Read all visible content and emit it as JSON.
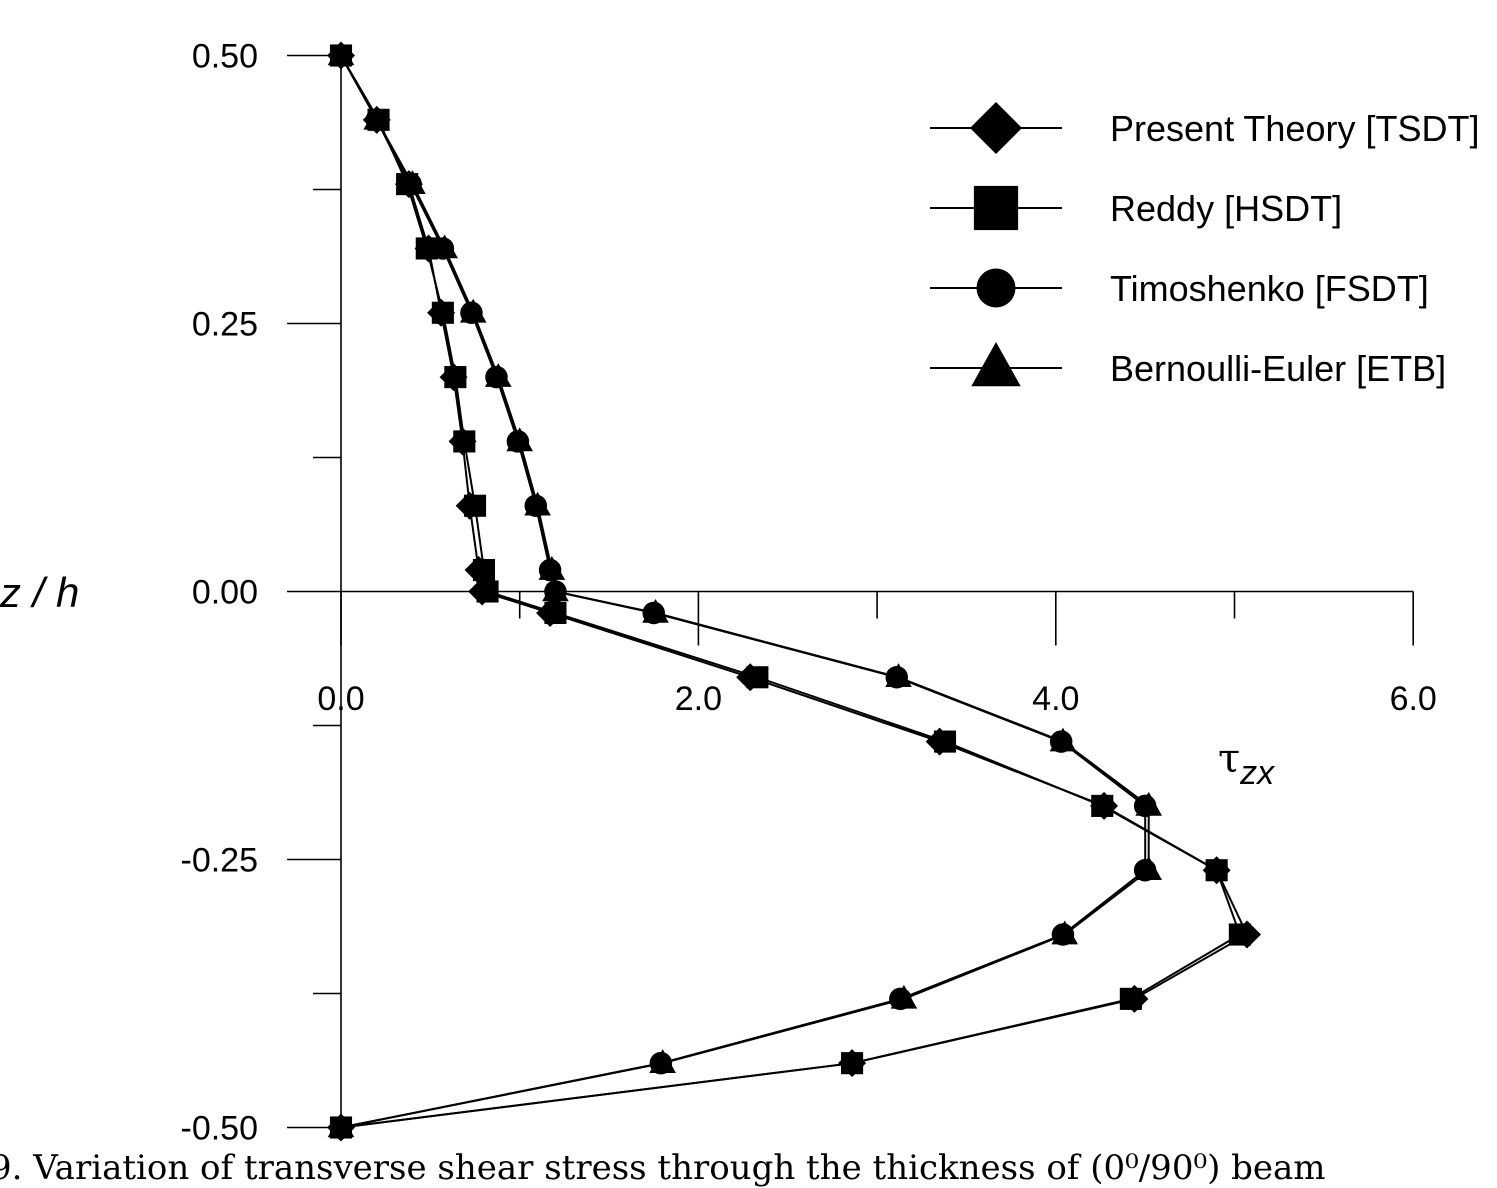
{
  "chart_data": {
    "type": "line",
    "xlabel": "τ zx",
    "ylabel": "z / h",
    "xlim": [
      0,
      6.0
    ],
    "ylim": [
      -0.5,
      0.5
    ],
    "x_ticks": [
      "0.0",
      "2.0",
      "4.0",
      "6.0"
    ],
    "y_ticks": [
      "0.50",
      "0.25",
      "0.00",
      "-0.25",
      "-0.50"
    ],
    "legend_position": "top-right",
    "series": [
      {
        "name": "Present Theory [TSDT]",
        "marker": "diamond",
        "points": [
          [
            0.0,
            0.5
          ],
          [
            0.2,
            0.44
          ],
          [
            0.38,
            0.38
          ],
          [
            0.49,
            0.32
          ],
          [
            0.56,
            0.26
          ],
          [
            0.63,
            0.2
          ],
          [
            0.68,
            0.14
          ],
          [
            0.72,
            0.08
          ],
          [
            0.77,
            0.02
          ],
          [
            0.79,
            0.0
          ],
          [
            1.17,
            -0.02
          ],
          [
            2.29,
            -0.08
          ],
          [
            3.35,
            -0.14
          ],
          [
            4.27,
            -0.2
          ],
          [
            4.9,
            -0.26
          ],
          [
            5.07,
            -0.32
          ],
          [
            4.44,
            -0.38
          ],
          [
            2.86,
            -0.44
          ],
          [
            0.0,
            -0.5
          ]
        ]
      },
      {
        "name": "Reddy [HSDT]",
        "marker": "square",
        "points": [
          [
            0.0,
            0.5
          ],
          [
            0.21,
            0.44
          ],
          [
            0.37,
            0.38
          ],
          [
            0.48,
            0.32
          ],
          [
            0.57,
            0.26
          ],
          [
            0.64,
            0.2
          ],
          [
            0.69,
            0.14
          ],
          [
            0.75,
            0.08
          ],
          [
            0.8,
            0.02
          ],
          [
            0.82,
            0.0
          ],
          [
            1.2,
            -0.02
          ],
          [
            2.33,
            -0.08
          ],
          [
            3.38,
            -0.14
          ],
          [
            4.26,
            -0.2
          ],
          [
            4.9,
            -0.26
          ],
          [
            5.03,
            -0.32
          ],
          [
            4.42,
            -0.38
          ],
          [
            2.86,
            -0.44
          ],
          [
            0.0,
            -0.5
          ]
        ]
      },
      {
        "name": "Timoshenko [FSDT]",
        "marker": "circle",
        "points": [
          [
            0.0,
            0.5
          ],
          [
            0.2,
            0.44
          ],
          [
            0.39,
            0.38
          ],
          [
            0.57,
            0.32
          ],
          [
            0.73,
            0.26
          ],
          [
            0.87,
            0.2
          ],
          [
            0.99,
            0.14
          ],
          [
            1.09,
            0.08
          ],
          [
            1.17,
            0.02
          ],
          [
            1.2,
            0.0
          ],
          [
            1.75,
            -0.02
          ],
          [
            3.11,
            -0.08
          ],
          [
            4.03,
            -0.14
          ],
          [
            4.5,
            -0.2
          ],
          [
            4.5,
            -0.26
          ],
          [
            4.04,
            -0.32
          ],
          [
            3.13,
            -0.38
          ],
          [
            1.79,
            -0.44
          ],
          [
            0.0,
            -0.5
          ]
        ]
      },
      {
        "name": "Bernoulli-Euler [ETB]",
        "marker": "triangle",
        "points": [
          [
            0.0,
            0.5
          ],
          [
            0.2,
            0.44
          ],
          [
            0.4,
            0.38
          ],
          [
            0.58,
            0.32
          ],
          [
            0.74,
            0.26
          ],
          [
            0.88,
            0.2
          ],
          [
            1.0,
            0.14
          ],
          [
            1.1,
            0.08
          ],
          [
            1.18,
            0.02
          ],
          [
            1.2,
            0.0
          ],
          [
            1.76,
            -0.02
          ],
          [
            3.12,
            -0.08
          ],
          [
            4.04,
            -0.14
          ],
          [
            4.52,
            -0.2
          ],
          [
            4.52,
            -0.26
          ],
          [
            4.05,
            -0.32
          ],
          [
            3.15,
            -0.38
          ],
          [
            1.8,
            -0.44
          ],
          [
            0.0,
            -0.5
          ]
        ]
      }
    ]
  },
  "caption": "9. Variation of transverse shear stress through the thickness of (0⁰/90⁰) beam"
}
